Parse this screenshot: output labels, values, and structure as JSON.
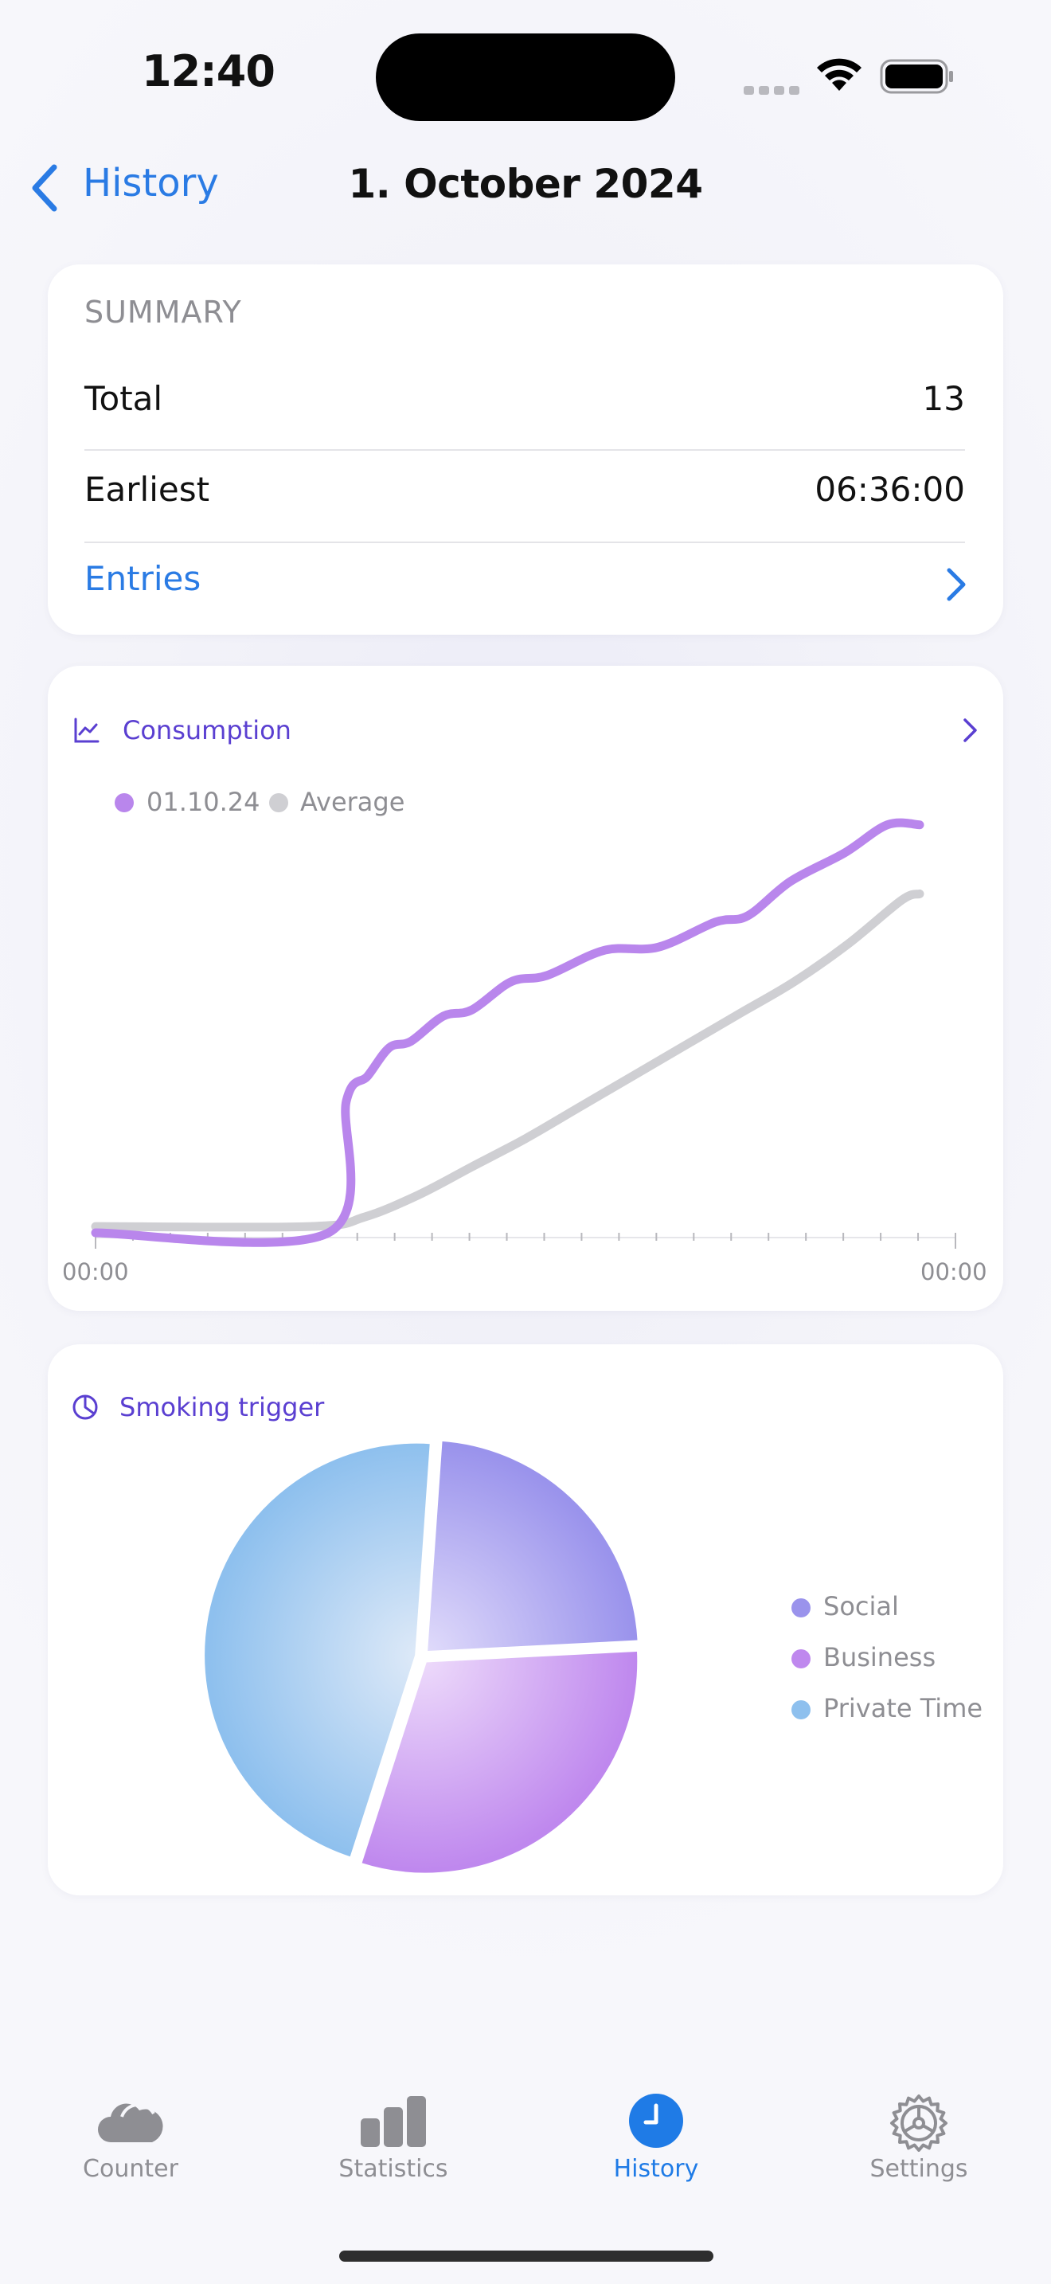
{
  "status_bar": {
    "time": "12:40"
  },
  "nav": {
    "back_label": "History",
    "title": "1. October 2024"
  },
  "summary": {
    "heading": "SUMMARY",
    "rows": [
      {
        "label": "Total",
        "value": "13"
      },
      {
        "label": "Earliest",
        "value": "06:36:00"
      }
    ],
    "entries_label": "Entries"
  },
  "consumption": {
    "title": "Consumption",
    "icon": "chart-line-icon",
    "legend": [
      {
        "label": "01.10.24",
        "color": "#b986ec"
      },
      {
        "label": "Average",
        "color": "#cfcfd3"
      }
    ],
    "x_start_label": "00:00",
    "x_end_label": "00:00"
  },
  "chart_data": {
    "type": "line",
    "title": "Consumption",
    "x_range": [
      "00:00",
      "24:00"
    ],
    "series": [
      {
        "name": "01.10.24",
        "color": "#b986ec",
        "x_hours": [
          0,
          6.5,
          7.0,
          7.6,
          8.2,
          8.8,
          9.7,
          10.5,
          11.6,
          12.6,
          14.2,
          15.7,
          17.3,
          18.2,
          19.4,
          20.9,
          22.1,
          23.0
        ],
        "y": [
          0,
          0,
          4.2,
          5.0,
          5.9,
          6.1,
          6.9,
          7.1,
          8.0,
          8.2,
          9.0,
          9.1,
          9.9,
          10.1,
          11.2,
          12.1,
          13.0,
          13.0
        ]
      },
      {
        "name": "Average",
        "color": "#cfcfd3",
        "x_hours": [
          0,
          6.0,
          7.5,
          9.0,
          10.5,
          12.0,
          13.5,
          15.0,
          16.5,
          18.0,
          19.5,
          21.0,
          22.5,
          23.0
        ],
        "y": [
          0.2,
          0.2,
          0.5,
          1.2,
          2.1,
          3.0,
          4.0,
          5.0,
          6.0,
          7.0,
          8.0,
          9.2,
          10.6,
          10.8
        ]
      }
    ],
    "ylim": [
      0,
      13.5
    ]
  },
  "trigger": {
    "title": "Smoking trigger",
    "icon": "pie-chart-icon",
    "slices": [
      {
        "label": "Social",
        "value": 3,
        "color": "#9a93ec",
        "light": "#e2ddfb"
      },
      {
        "label": "Business",
        "value": 4,
        "color": "#bf88ee",
        "light": "#eedcfb"
      },
      {
        "label": "Private Time",
        "value": 6,
        "color": "#8ec0ee",
        "light": "#dfeaf8"
      }
    ]
  },
  "tabbar": {
    "items": [
      {
        "label": "Counter",
        "icon": "cloud-icon",
        "active": false
      },
      {
        "label": "Statistics",
        "icon": "bar-chart-icon",
        "active": false
      },
      {
        "label": "History",
        "icon": "clock-icon",
        "active": true
      },
      {
        "label": "Settings",
        "icon": "gear-icon",
        "active": false
      }
    ]
  }
}
